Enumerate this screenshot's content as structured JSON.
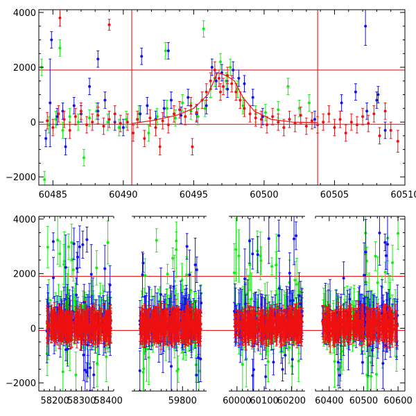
{
  "colors": {
    "red": "#ee1111",
    "green": "#11ee11",
    "blue": "#1111ee",
    "reference_lines": "#e00000"
  },
  "chart_data": [
    {
      "type": "scatter",
      "title": "",
      "xlabel": "",
      "ylabel": "",
      "xlim": [
        60484,
        60510
      ],
      "ylim": [
        -2300,
        4100
      ],
      "x_ticks": [
        60485,
        60490,
        60495,
        60500,
        60505,
        60510
      ],
      "x_tick_labels": [
        "60485",
        "60490",
        "60495",
        "60500",
        "60505",
        "60510"
      ],
      "y_ticks": [
        -2000,
        0,
        2000,
        4000
      ],
      "y_tick_labels": [
        "−2000",
        "0",
        "2000",
        "4000"
      ],
      "grid": false,
      "hlines": [
        1900,
        -80
      ],
      "vlines": [
        60490.6,
        60503.8
      ],
      "series": [
        {
          "color": "red",
          "model_line": {
            "x": [
              60490.6,
              60492.0,
              60493.8,
              60495.0,
              60496.0,
              60496.7,
              60497.3,
              60497.9,
              60498.5,
              60499.3,
              60500.5,
              60502.0,
              60503.8
            ],
            "y": [
              -50,
              50,
              250,
              500,
              1000,
              1800,
              1700,
              1500,
              900,
              400,
              100,
              0,
              -20
            ]
          },
          "x": [
            60484.6,
            60485.0,
            60485.4,
            60485.8,
            60486.2,
            60486.6,
            60487.0,
            60487.4,
            60487.8,
            60488.2,
            60488.6,
            60489.0,
            60489.4,
            60489.8,
            60490.3,
            60490.7,
            60491.0,
            60491.5,
            60491.9,
            60492.3,
            60492.8,
            60493.2,
            60493.6,
            60494.0,
            60494.4,
            60494.8,
            60495.2,
            60495.6,
            60495.9,
            60496.2,
            60496.5,
            60496.8,
            60497.1,
            60497.4,
            60497.7,
            60498.0,
            60498.3,
            60498.6,
            60499.0,
            60499.4,
            60499.8,
            60500.2,
            60500.6,
            60501.0,
            60501.4,
            60501.8,
            60502.2,
            60502.6,
            60503.0,
            60503.4,
            60503.8,
            60504.2,
            60504.6,
            60505.0,
            60505.4,
            60505.8,
            60506.2,
            60506.6,
            60507.0,
            60507.4,
            60507.8,
            60508.2,
            60508.6,
            60509.0,
            60509.5,
            60485.5,
            60489.0,
            60492.6,
            60494.9,
            60496.9
          ],
          "y": [
            50,
            -200,
            300,
            100,
            -300,
            200,
            400,
            -100,
            0,
            250,
            -150,
            100,
            300,
            -50,
            0,
            -400,
            100,
            -600,
            150,
            -200,
            50,
            -100,
            300,
            450,
            200,
            600,
            350,
            800,
            1100,
            1500,
            1900,
            1600,
            1300,
            1700,
            1400,
            1100,
            800,
            500,
            300,
            150,
            100,
            -100,
            200,
            0,
            -200,
            100,
            -50,
            250,
            -150,
            50,
            -100,
            0,
            300,
            -200,
            100,
            -400,
            0,
            -100,
            200,
            -50,
            300,
            -500,
            400,
            -300,
            -700,
            3800,
            3550,
            -900,
            -900,
            1100
          ],
          "yerr": [
            300,
            300,
            300,
            300,
            300,
            300,
            300,
            300,
            300,
            300,
            300,
            300,
            300,
            300,
            300,
            300,
            300,
            300,
            300,
            300,
            300,
            300,
            300,
            300,
            300,
            300,
            300,
            300,
            300,
            300,
            300,
            300,
            300,
            300,
            300,
            300,
            300,
            300,
            300,
            300,
            300,
            300,
            300,
            300,
            300,
            300,
            300,
            300,
            300,
            300,
            300,
            300,
            300,
            300,
            300,
            300,
            300,
            300,
            300,
            300,
            300,
            300,
            300,
            300,
            400,
            300,
            200,
            300,
            300,
            300
          ]
        },
        {
          "color": "green",
          "x": [
            60484.2,
            60484.7,
            60485.2,
            60485.7,
            60486.2,
            60486.8,
            60487.2,
            60487.6,
            60488.1,
            60488.9,
            60489.7,
            60490.2,
            60491.1,
            60491.8,
            60492.4,
            60493.1,
            60493.7,
            60494.2,
            60494.8,
            60495.3,
            60495.8,
            60496.2,
            60496.5,
            60496.9,
            60497.3,
            60497.6,
            60498.1,
            60498.5,
            60499.4,
            60500.1,
            60501.0,
            60501.7,
            60502.5,
            60503.2,
            60485.5,
            60493.0,
            60495.7,
            60484.4
          ],
          "y": [
            2000,
            -100,
            100,
            -300,
            200,
            0,
            -1300,
            150,
            400,
            0,
            -200,
            100,
            300,
            -400,
            200,
            500,
            150,
            700,
            400,
            200,
            500,
            1200,
            1600,
            2200,
            1500,
            2000,
            1200,
            600,
            300,
            350,
            450,
            1300,
            500,
            700,
            2700,
            2600,
            3400,
            -2100
          ],
          "yerr": [
            300,
            300,
            300,
            300,
            300,
            300,
            300,
            300,
            300,
            300,
            300,
            300,
            300,
            300,
            300,
            300,
            300,
            300,
            300,
            300,
            300,
            300,
            300,
            300,
            300,
            300,
            300,
            300,
            300,
            300,
            300,
            300,
            300,
            300,
            300,
            300,
            300,
            300
          ]
        },
        {
          "color": "blue",
          "x": [
            60484.5,
            60484.9,
            60485.3,
            60485.9,
            60486.5,
            60487.0,
            60487.6,
            60488.2,
            60488.7,
            60489.4,
            60490.0,
            60491.2,
            60491.7,
            60492.3,
            60492.9,
            60493.4,
            60494.1,
            60494.6,
            60495.2,
            60495.9,
            60496.3,
            60496.6,
            60497.0,
            60497.4,
            60497.8,
            60498.2,
            60498.6,
            60499.2,
            60499.9,
            60503.6,
            60505.5,
            60506.5,
            60507.3,
            60508.0,
            60508.6,
            60484.8,
            60488.2,
            60491.3,
            60493.2,
            60507.2,
            60508.1,
            60485.7
          ],
          "y": [
            -600,
            3000,
            200,
            -900,
            600,
            300,
            1300,
            400,
            800,
            0,
            -200,
            300,
            600,
            100,
            500,
            800,
            250,
            900,
            300,
            600,
            2000,
            1500,
            1800,
            1200,
            1900,
            1600,
            1400,
            900,
            200,
            100,
            700,
            1100,
            400,
            800,
            -300,
            700,
            2300,
            2400,
            2600,
            3500,
            1000,
            400
          ],
          "yerr": [
            300,
            300,
            300,
            300,
            300,
            300,
            300,
            300,
            300,
            300,
            300,
            300,
            300,
            300,
            300,
            300,
            300,
            300,
            300,
            300,
            300,
            300,
            300,
            300,
            300,
            300,
            300,
            300,
            300,
            300,
            300,
            300,
            300,
            300,
            300,
            1600,
            300,
            300,
            300,
            700,
            300,
            300
          ]
        }
      ]
    },
    {
      "type": "scatter",
      "title": "",
      "xlabel": "",
      "ylabel": "",
      "ylim": [
        -2300,
        4100
      ],
      "y_ticks": [
        -2000,
        0,
        2000,
        4000
      ],
      "y_tick_labels": [
        "−2000",
        "0",
        "2000",
        "4000"
      ],
      "grid": false,
      "hlines": [
        1900,
        -80
      ],
      "broken_x_axis": true,
      "segments": [
        {
          "xlim": [
            58140,
            58420
          ],
          "x_ticks": [
            58200,
            58300,
            58400
          ],
          "x_tick_labels": [
            "58200",
            "58300",
            "58400"
          ]
        },
        {
          "xlim": [
            59610,
            59890
          ],
          "x_ticks": [
            59800
          ],
          "x_tick_labels": [
            "59800"
          ]
        },
        {
          "xlim": [
            59970,
            60250
          ],
          "x_ticks": [
            60000,
            60100,
            60200
          ],
          "x_tick_labels": [
            "60000",
            "60100",
            "60200"
          ]
        },
        {
          "xlim": [
            60360,
            60620
          ],
          "x_ticks": [
            60400,
            60500,
            60600
          ],
          "x_tick_labels": [
            "60400",
            "60500",
            "60600"
          ]
        }
      ],
      "data_ranges": [
        {
          "segment": 0,
          "x_range": [
            58170,
            58410
          ]
        },
        {
          "segment": 1,
          "x_range": [
            59640,
            59870
          ]
        },
        {
          "segment": 2,
          "x_range": [
            59990,
            60240
          ]
        },
        {
          "segment": 3,
          "x_range": [
            60380,
            60600
          ]
        }
      ],
      "series_colors": [
        "red",
        "green",
        "blue"
      ],
      "series_spread": {
        "red": [
          -600,
          600
        ],
        "green": [
          -1800,
          3500
        ],
        "blue": [
          -1800,
          3500
        ]
      }
    }
  ]
}
